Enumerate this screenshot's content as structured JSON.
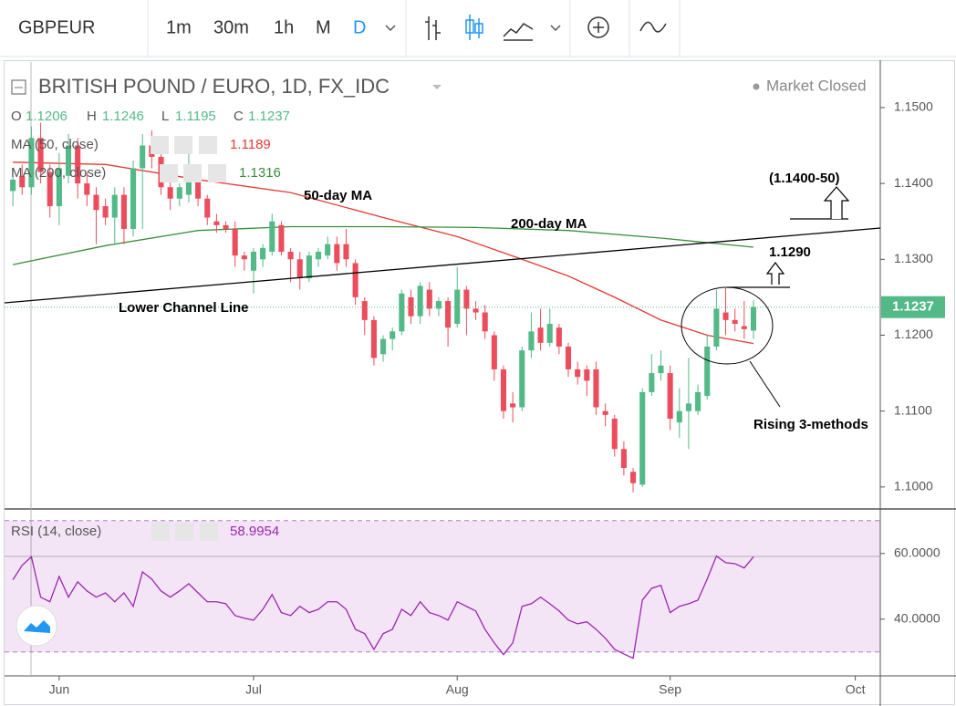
{
  "toolbar": {
    "symbol": "GBPEUR",
    "intervals": [
      "1m",
      "30m",
      "1h",
      "M",
      "D"
    ]
  },
  "chart_data": [
    {
      "type": "candlestick",
      "title": "BRITISH POUND / EURO, 1D, FX_IDC",
      "status": "Market Closed",
      "ohlc_labels": [
        "O",
        "H",
        "L",
        "C"
      ],
      "x": [
        -5,
        -4,
        -3,
        -2,
        -1,
        0,
        1,
        2,
        3,
        4,
        5,
        6,
        7,
        8,
        9,
        10,
        11,
        12,
        13,
        14,
        15,
        16,
        17,
        18,
        19,
        20,
        21,
        22,
        23,
        24,
        25,
        26,
        27,
        28,
        29,
        30,
        31,
        32,
        33,
        34,
        35,
        36,
        37,
        38,
        39,
        40,
        41,
        42,
        43,
        44,
        45,
        46,
        47,
        48,
        49,
        50,
        51,
        52,
        53,
        54,
        55,
        56,
        57,
        58,
        59,
        60,
        61,
        62,
        63,
        64,
        65,
        66,
        67,
        68,
        69,
        70,
        71,
        72,
        73,
        74,
        75
      ],
      "open": [
        1.139,
        1.141,
        1.1395,
        1.146,
        1.1415,
        1.137,
        1.141,
        1.145,
        1.14,
        1.1385,
        1.137,
        1.1355,
        1.1385,
        1.134,
        1.142,
        1.145,
        1.1435,
        1.1395,
        1.138,
        1.1385,
        1.1415,
        1.138,
        1.135,
        1.1345,
        1.134,
        1.1305,
        1.1285,
        1.13,
        1.131,
        1.1345,
        1.131,
        1.13,
        1.1275,
        1.13,
        1.1305,
        1.132,
        1.132,
        1.1295,
        1.1245,
        1.122,
        1.1175,
        1.1195,
        1.1205,
        1.125,
        1.1225,
        1.126,
        1.1235,
        1.1245,
        1.1215,
        1.126,
        1.1235,
        1.123,
        1.12,
        1.1155,
        1.111,
        1.1105,
        1.118,
        1.121,
        1.119,
        1.121,
        1.1185,
        1.1155,
        1.1155,
        1.1155,
        1.11,
        1.109,
        1.105,
        1.102,
        1.1003,
        1.1125,
        1.115,
        1.115,
        1.1085,
        1.11,
        1.11,
        1.112,
        1.1185,
        1.123,
        1.122,
        1.1212,
        1.1206
      ],
      "high": [
        1.142,
        1.1425,
        1.1475,
        1.148,
        1.1425,
        1.144,
        1.1465,
        1.146,
        1.1415,
        1.1395,
        1.138,
        1.1395,
        1.1395,
        1.143,
        1.1465,
        1.147,
        1.1445,
        1.141,
        1.14,
        1.144,
        1.1425,
        1.1385,
        1.136,
        1.135,
        1.135,
        1.131,
        1.1315,
        1.132,
        1.136,
        1.135,
        1.1315,
        1.131,
        1.131,
        1.1315,
        1.133,
        1.133,
        1.134,
        1.13,
        1.125,
        1.1225,
        1.12,
        1.121,
        1.126,
        1.126,
        1.127,
        1.127,
        1.125,
        1.125,
        1.129,
        1.1265,
        1.1245,
        1.124,
        1.1205,
        1.116,
        1.1125,
        1.1185,
        1.123,
        1.1235,
        1.1235,
        1.1215,
        1.119,
        1.1165,
        1.116,
        1.1165,
        1.111,
        1.1095,
        1.106,
        1.1025,
        1.113,
        1.1175,
        1.118,
        1.116,
        1.113,
        1.117,
        1.1135,
        1.12,
        1.126,
        1.1262,
        1.1235,
        1.1245,
        1.1246
      ],
      "low": [
        1.137,
        1.1385,
        1.1385,
        1.14,
        1.1355,
        1.1345,
        1.14,
        1.138,
        1.137,
        1.132,
        1.1345,
        1.132,
        1.132,
        1.133,
        1.134,
        1.142,
        1.1385,
        1.1365,
        1.137,
        1.1375,
        1.137,
        1.1345,
        1.1335,
        1.1335,
        1.129,
        1.1285,
        1.1255,
        1.129,
        1.1305,
        1.1305,
        1.127,
        1.126,
        1.127,
        1.129,
        1.13,
        1.1285,
        1.129,
        1.124,
        1.12,
        1.116,
        1.1165,
        1.118,
        1.12,
        1.1215,
        1.1215,
        1.1225,
        1.1225,
        1.1185,
        1.121,
        1.12,
        1.122,
        1.1195,
        1.114,
        1.109,
        1.1085,
        1.11,
        1.117,
        1.118,
        1.1185,
        1.1175,
        1.1145,
        1.1135,
        1.112,
        1.1095,
        1.108,
        1.104,
        1.1015,
        1.0993,
        1.1,
        1.112,
        1.114,
        1.1075,
        1.1065,
        1.105,
        1.1095,
        1.1115,
        1.118,
        1.12,
        1.1205,
        1.1195,
        1.1195
      ],
      "close": [
        1.1405,
        1.1395,
        1.146,
        1.1415,
        1.137,
        1.142,
        1.145,
        1.14,
        1.1385,
        1.1365,
        1.1355,
        1.1385,
        1.134,
        1.142,
        1.145,
        1.1435,
        1.1395,
        1.138,
        1.1395,
        1.1415,
        1.138,
        1.1355,
        1.1345,
        1.134,
        1.1305,
        1.13,
        1.131,
        1.1315,
        1.135,
        1.131,
        1.13,
        1.1275,
        1.1305,
        1.131,
        1.132,
        1.1295,
        1.13,
        1.125,
        1.122,
        1.117,
        1.1195,
        1.1205,
        1.1255,
        1.1225,
        1.1265,
        1.1235,
        1.1245,
        1.121,
        1.126,
        1.1235,
        1.123,
        1.1205,
        1.1155,
        1.11,
        1.1105,
        1.118,
        1.1205,
        1.119,
        1.1215,
        1.1185,
        1.1155,
        1.1145,
        1.114,
        1.1105,
        1.1095,
        1.105,
        1.1025,
        1.1005,
        1.1125,
        1.115,
        1.116,
        1.109,
        1.11,
        1.111,
        1.1125,
        1.1185,
        1.1235,
        1.122,
        1.1215,
        1.1208,
        1.1237
      ],
      "up_color": "#53b987",
      "down_color": "#eb4d5c",
      "overlays": [
        {
          "name": "MA (50, close)",
          "color": "#e53935",
          "x": [
            -5,
            5,
            15,
            25,
            35,
            43,
            50,
            55,
            60,
            65,
            70,
            75
          ],
          "values": [
            1.1428,
            1.1425,
            1.1405,
            1.1388,
            1.1355,
            1.133,
            1.13,
            1.1278,
            1.125,
            1.122,
            1.12,
            1.1189
          ]
        },
        {
          "name": "MA (200, close)",
          "color": "#388e3c",
          "x": [
            -5,
            5,
            15,
            25,
            35,
            45,
            55,
            65,
            70,
            75
          ],
          "values": [
            1.1293,
            1.1318,
            1.1338,
            1.1343,
            1.1343,
            1.1342,
            1.1338,
            1.1328,
            1.1322,
            1.1316
          ]
        }
      ],
      "ylim": [
        1.0971,
        1.156
      ],
      "yticks": [
        {
          "value": 1.1,
          "label": "1.1000"
        },
        {
          "value": 1.11,
          "label": "1.1100"
        },
        {
          "value": 1.12,
          "label": "1.1200"
        },
        {
          "value": 1.13,
          "label": "1.1300"
        },
        {
          "value": 1.14,
          "label": "1.1400"
        },
        {
          "value": 1.15,
          "label": "1.1500"
        }
      ],
      "xlim": [
        -5.9,
        88.7
      ],
      "xticks": [
        {
          "value": 0,
          "label": "Jun"
        },
        {
          "value": 21,
          "label": "Jul"
        },
        {
          "value": 43,
          "label": "Aug"
        },
        {
          "value": 66,
          "label": "Sep"
        },
        {
          "value": 86,
          "label": "Oct"
        }
      ],
      "annotations": [
        "50-day MA",
        "200-day MA",
        "Lower Channel Line",
        "(1.1400-50)",
        "1.1290",
        "Rising 3-methods"
      ]
    },
    {
      "type": "line",
      "x": [
        -5,
        -4,
        -3,
        -2,
        -1,
        0,
        1,
        2,
        3,
        4,
        5,
        6,
        7,
        8,
        9,
        10,
        11,
        12,
        13,
        14,
        15,
        16,
        17,
        18,
        19,
        20,
        21,
        22,
        23,
        24,
        25,
        26,
        27,
        28,
        29,
        30,
        31,
        32,
        33,
        34,
        35,
        36,
        37,
        38,
        39,
        40,
        41,
        42,
        43,
        44,
        45,
        46,
        47,
        48,
        49,
        50,
        51,
        52,
        53,
        54,
        55,
        56,
        57,
        58,
        59,
        60,
        61,
        62,
        63,
        64,
        65,
        66,
        67,
        68,
        69,
        70,
        71,
        72,
        73,
        74,
        75
      ],
      "series": [
        {
          "name": "RSI (14, close)",
          "color": "#9c27b0",
          "values": [
            52,
            56.4,
            59,
            46.7,
            45.3,
            53,
            46.7,
            51.4,
            48.6,
            46.7,
            48,
            45.3,
            48,
            43.9,
            54.4,
            52.2,
            48.6,
            46.7,
            48.6,
            50.8,
            48,
            45.3,
            45.3,
            44.7,
            41.1,
            40.3,
            39.7,
            43,
            47.5,
            42,
            41.1,
            43.9,
            42,
            43,
            45.3,
            45.3,
            43,
            36.9,
            35.6,
            30.8,
            35.6,
            36.9,
            43,
            41.1,
            45.3,
            42,
            41.1,
            39.7,
            45.3,
            43.9,
            42.5,
            36.9,
            32.8,
            29.2,
            32.8,
            43.9,
            44.7,
            46.7,
            44.7,
            42.5,
            39.7,
            38.6,
            39.2,
            36.9,
            34.2,
            30.8,
            29.4,
            28.1,
            45.8,
            49.4,
            50.3,
            42,
            43.9,
            44.7,
            45.8,
            52.2,
            59.2,
            57.2,
            56.9,
            55.6,
            58.9954
          ]
        }
      ],
      "band": [
        30,
        70
      ],
      "ylim": [
        23,
        73
      ],
      "yticks": [
        {
          "value": 40,
          "label": "40.0000"
        },
        {
          "value": 60,
          "label": "60.0000"
        }
      ],
      "xlim": [
        -5.9,
        88.7
      ]
    }
  ]
}
